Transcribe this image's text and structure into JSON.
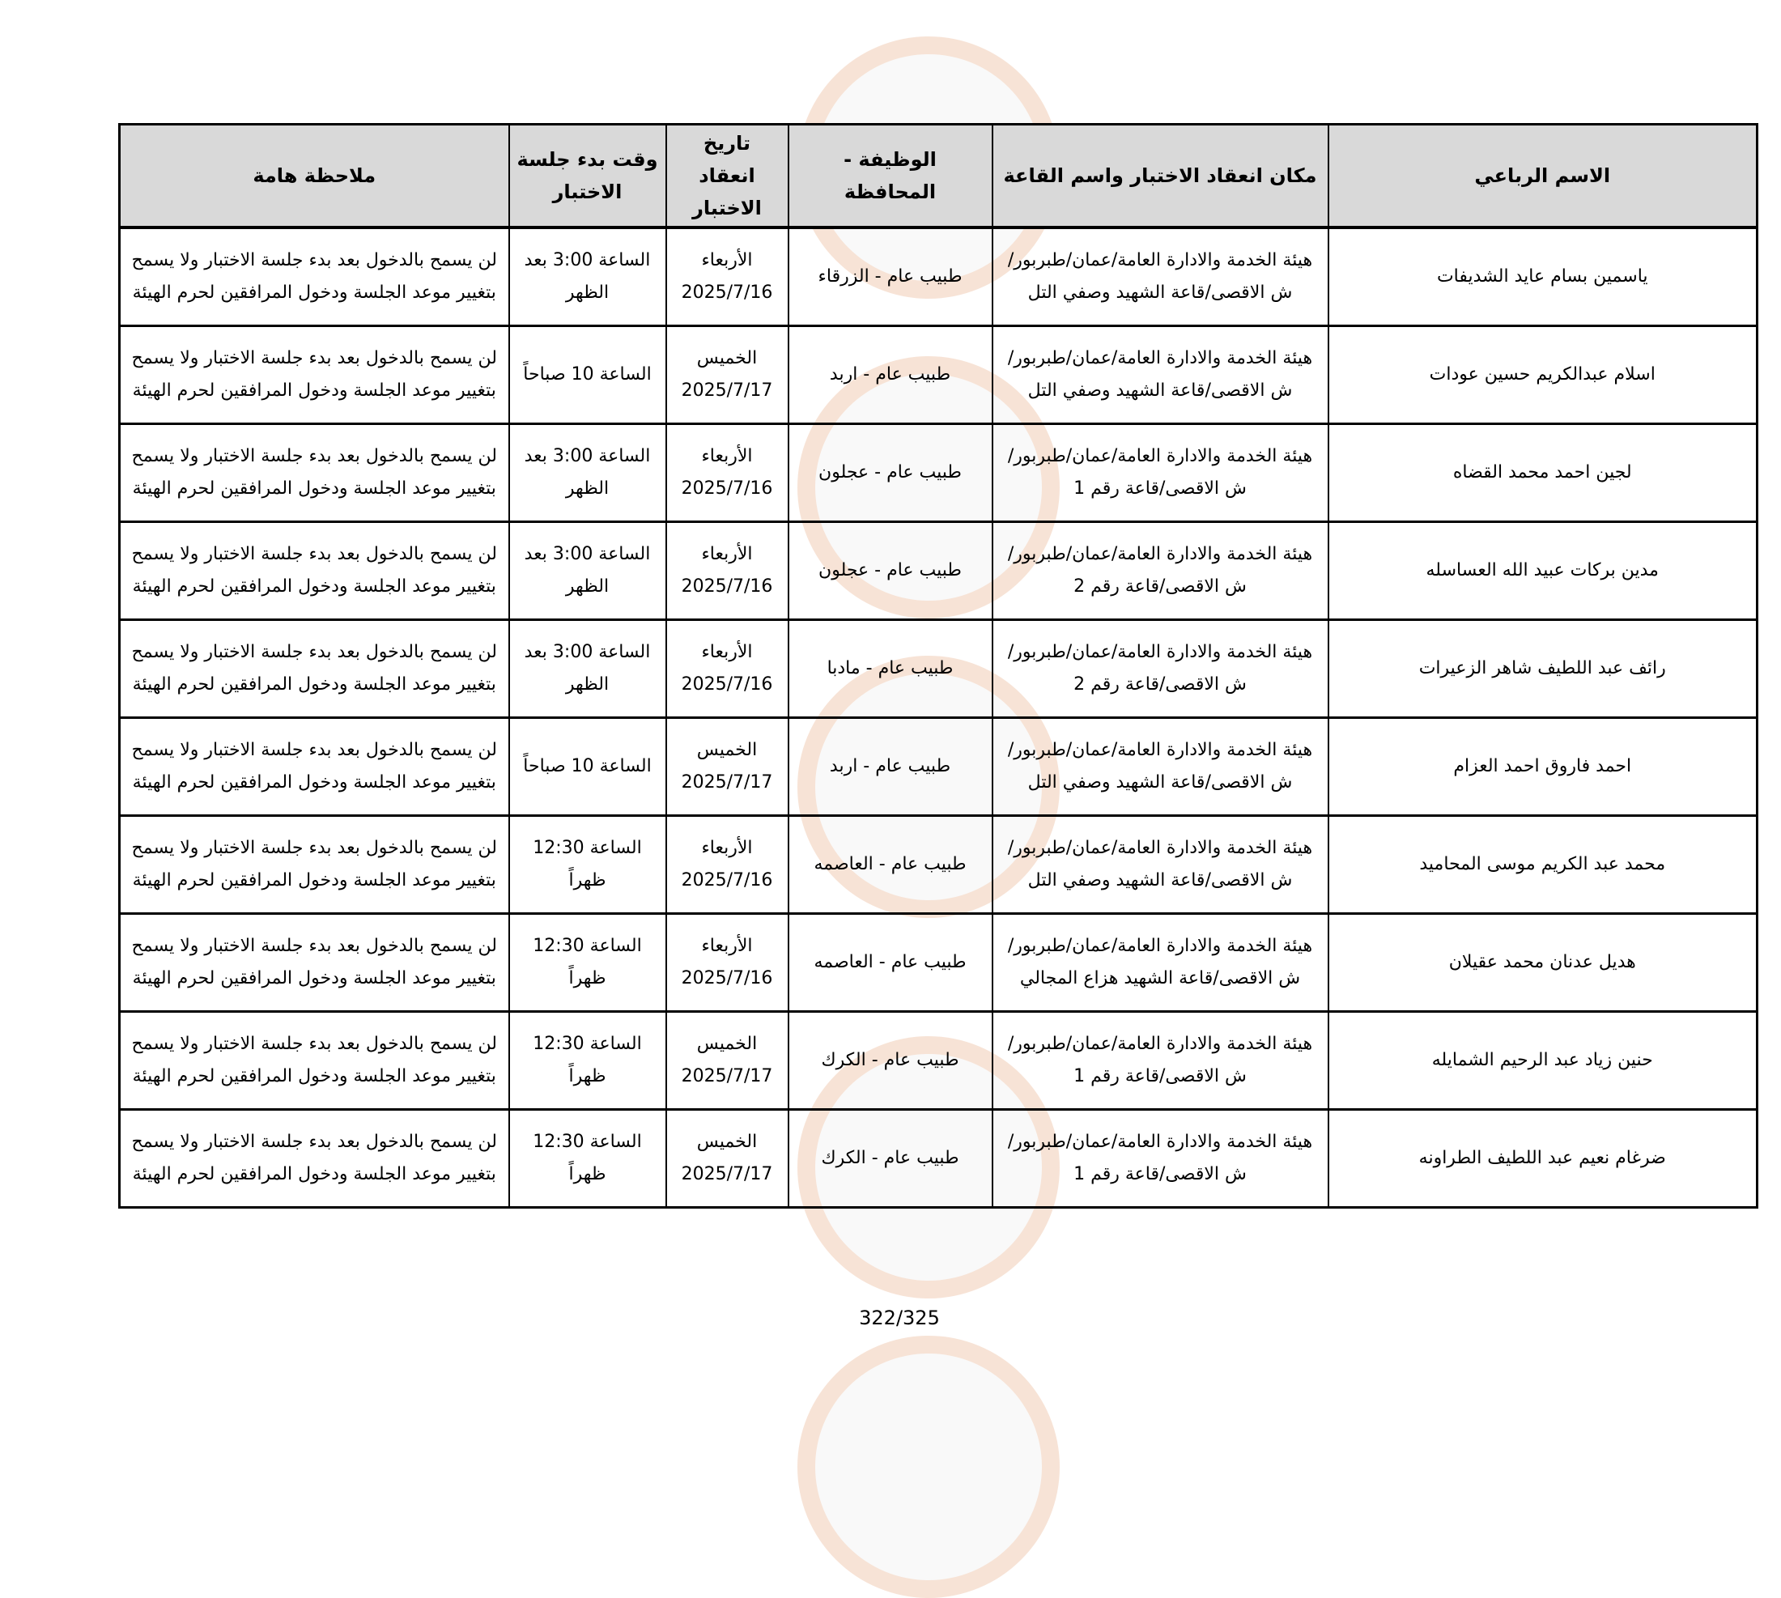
{
  "watermark": {
    "brand_colors": [
      "#f0965a",
      "#969696"
    ]
  },
  "table": {
    "headers": {
      "name": "الاسم الرباعي",
      "location": "مكان انعقاد الاختبار واسم القاعة",
      "job": "الوظيفة - المحافظة",
      "date": "تاريخ انعقاد الاختبار",
      "time": "وقت بدء جلسة الاختبار",
      "note": "ملاحظة هامة"
    },
    "rows": [
      {
        "name": "ياسمين بسام عايد الشديفات",
        "location": "هيئة الخدمة والادارة العامة/عمان/طبربور/ش الاقصى/قاعة الشهيد وصفي التل",
        "job": "طبيب عام  -  الزرقاء",
        "date": "الأربعاء 2025/7/16",
        "time": "الساعة 3:00 بعد الظهر",
        "note": "لن يسمح بالدخول بعد بدء جلسة الاختبار ولا يسمح بتغيير موعد الجلسة ودخول المرافقين لحرم الهيئة"
      },
      {
        "name": "اسلام عبدالكريم حسين عودات",
        "location": "هيئة الخدمة والادارة العامة/عمان/طبربور/ش الاقصى/قاعة الشهيد وصفي التل",
        "job": "طبيب عام - اربد",
        "date": "الخميس 2025/7/17",
        "time": "الساعة 10 صباحاً",
        "note": "لن يسمح بالدخول بعد بدء جلسة الاختبار ولا يسمح بتغيير موعد الجلسة ودخول المرافقين لحرم الهيئة"
      },
      {
        "name": "لجين احمد محمد القضاه",
        "location": "هيئة الخدمة والادارة العامة/عمان/طبربور/ش الاقصى/قاعة رقم 1",
        "job": "طبيب عام - عجلون",
        "date": "الأربعاء 2025/7/16",
        "time": "الساعة 3:00 بعد الظهر",
        "note": "لن يسمح بالدخول بعد بدء جلسة الاختبار ولا يسمح بتغيير موعد الجلسة ودخول المرافقين لحرم الهيئة"
      },
      {
        "name": "مدين بركات عبيد الله العساسله",
        "location": "هيئة الخدمة والادارة العامة/عمان/طبربور/ش الاقصى/قاعة رقم 2",
        "job": "طبيب عام - عجلون",
        "date": "الأربعاء 2025/7/16",
        "time": "الساعة 3:00 بعد الظهر",
        "note": "لن يسمح بالدخول بعد بدء جلسة الاختبار ولا يسمح بتغيير موعد الجلسة ودخول المرافقين لحرم الهيئة"
      },
      {
        "name": "رائف عبد اللطيف شاهر الزعيرات",
        "location": "هيئة الخدمة والادارة العامة/عمان/طبربور/ش الاقصى/قاعة رقم 2",
        "job": "طبيب عام - مادبا",
        "date": "الأربعاء 2025/7/16",
        "time": "الساعة 3:00 بعد الظهر",
        "note": "لن يسمح بالدخول بعد بدء جلسة الاختبار ولا يسمح بتغيير موعد الجلسة ودخول المرافقين لحرم الهيئة"
      },
      {
        "name": "احمد فاروق احمد العزام",
        "location": "هيئة الخدمة والادارة العامة/عمان/طبربور/ش الاقصى/قاعة الشهيد وصفي التل",
        "job": "طبيب عام - اربد",
        "date": "الخميس 2025/7/17",
        "time": "الساعة 10 صباحاً",
        "note": "لن يسمح بالدخول بعد بدء جلسة الاختبار ولا يسمح بتغيير موعد الجلسة ودخول المرافقين لحرم الهيئة"
      },
      {
        "name": "محمد عبد الكريم موسى المحاميد",
        "location": "هيئة الخدمة والادارة العامة/عمان/طبربور/ش الاقصى/قاعة الشهيد وصفي التل",
        "job": "طبيب عام - العاصمه",
        "date": "الأربعاء 2025/7/16",
        "time": "الساعة 12:30 ظهراً",
        "note": "لن يسمح بالدخول بعد بدء جلسة الاختبار ولا يسمح بتغيير موعد الجلسة ودخول المرافقين لحرم الهيئة"
      },
      {
        "name": "هديل عدنان محمد عقيلان",
        "location": "هيئة الخدمة والادارة العامة/عمان/طبربور/ش الاقصى/قاعة الشهيد هزاع المجالي",
        "job": "طبيب عام - العاصمه",
        "date": "الأربعاء 2025/7/16",
        "time": "الساعة 12:30 ظهراً",
        "note": "لن يسمح بالدخول بعد بدء جلسة الاختبار ولا يسمح بتغيير موعد الجلسة ودخول المرافقين لحرم الهيئة"
      },
      {
        "name": "حنين زياد عبد الرحيم الشمايله",
        "location": "هيئة الخدمة والادارة العامة/عمان/طبربور/ش الاقصى/قاعة رقم 1",
        "job": "طبيب عام - الكرك",
        "date": "الخميس 2025/7/17",
        "time": "الساعة 12:30 ظهراً",
        "note": "لن يسمح بالدخول بعد بدء جلسة الاختبار ولا يسمح بتغيير موعد الجلسة ودخول المرافقين لحرم الهيئة"
      },
      {
        "name": "ضرغام نعيم عبد اللطيف الطراونه",
        "location": "هيئة الخدمة والادارة العامة/عمان/طبربور/ش الاقصى/قاعة رقم 1",
        "job": "طبيب عام - الكرك",
        "date": "الخميس 2025/7/17",
        "time": "الساعة 12:30 ظهراً",
        "note": "لن يسمح بالدخول بعد بدء جلسة الاختبار ولا يسمح بتغيير موعد الجلسة ودخول المرافقين لحرم الهيئة"
      }
    ]
  },
  "footer": {
    "page_number": "322/325"
  }
}
